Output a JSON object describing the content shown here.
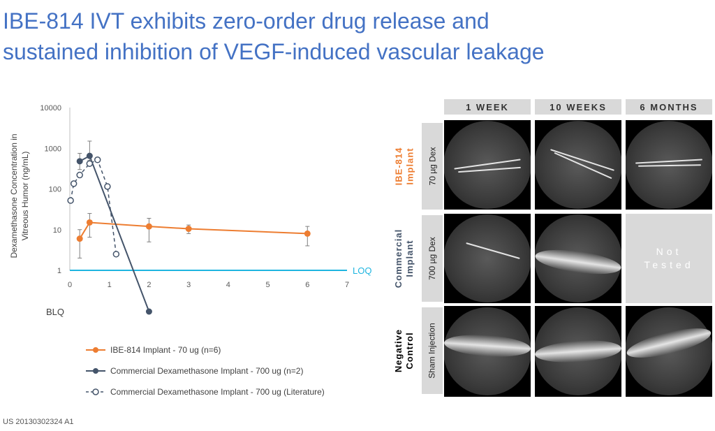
{
  "title": {
    "line1": "IBE-814 IVT exhibits zero-order drug release and",
    "line2": "sustained inhibition of VEGF-induced vascular leakage"
  },
  "colors": {
    "title": "#4472c4",
    "ibe": "#ed7d31",
    "commercial": "#44546a",
    "loq": "#1fb5e0"
  },
  "chart_data": {
    "type": "line",
    "ylabel_line1": "Dexamethasone Concentration in",
    "ylabel_line2": "Vitreous Humor (ng/mL)",
    "xlabel": "",
    "y_scale": "log",
    "ylim": [
      1,
      10000
    ],
    "xlim": [
      0,
      7
    ],
    "x_ticks": [
      "0",
      "1",
      "2",
      "3",
      "4",
      "5",
      "6",
      "7"
    ],
    "y_ticks": [
      "1",
      "10",
      "100",
      "1000",
      "10000"
    ],
    "grid": false,
    "reference_lines": [
      {
        "label": "LOQ",
        "y": 1
      }
    ],
    "blq_label": "BLQ",
    "legend_position": "bottom",
    "series": [
      {
        "name": "IBE-814 Implant - 70 ug (n=6)",
        "style": "solid-filled",
        "x": [
          0.25,
          0.5,
          2,
          3,
          6
        ],
        "y": [
          6,
          15,
          12,
          10.5,
          8
        ],
        "err_low": [
          2,
          6.5,
          5,
          8,
          4
        ],
        "err_high": [
          10,
          25,
          19,
          13,
          12
        ]
      },
      {
        "name": "Commercial Dexamethasone Implant - 700 ug (n=2)",
        "style": "solid-filled",
        "x": [
          0.25,
          0.5,
          2
        ],
        "y": [
          480,
          650,
          "BLQ"
        ],
        "err_low": [
          300,
          500,
          null
        ],
        "err_high": [
          750,
          1500,
          null
        ]
      },
      {
        "name": "Commercial Dexamethasone Implant - 700 ug (Literature)",
        "style": "dashed-open",
        "x": [
          0.02,
          0.1,
          0.25,
          0.5,
          0.7,
          0.95,
          1.17
        ],
        "y": [
          52,
          135,
          220,
          420,
          520,
          115,
          2.5
        ]
      }
    ]
  },
  "panel": {
    "columns": [
      "1 WEEK",
      "10 WEEKS",
      "6 MONTHS"
    ],
    "rows": [
      {
        "group_line1": "IBE-814",
        "group_line2": "Implant",
        "group_color": "#ed7d31",
        "sub": "70 µg Dex"
      },
      {
        "group_line1": "Commercial",
        "group_line2": "Implant",
        "group_color": "#44546a",
        "sub": "700 µg Dex"
      },
      {
        "group_line1": "Negative",
        "group_line2": "Control",
        "group_color": "#000000",
        "sub": "Sham Injection"
      }
    ],
    "not_tested_line1": "Not",
    "not_tested_line2": "Tested"
  },
  "source": "US 20130302324 A1"
}
